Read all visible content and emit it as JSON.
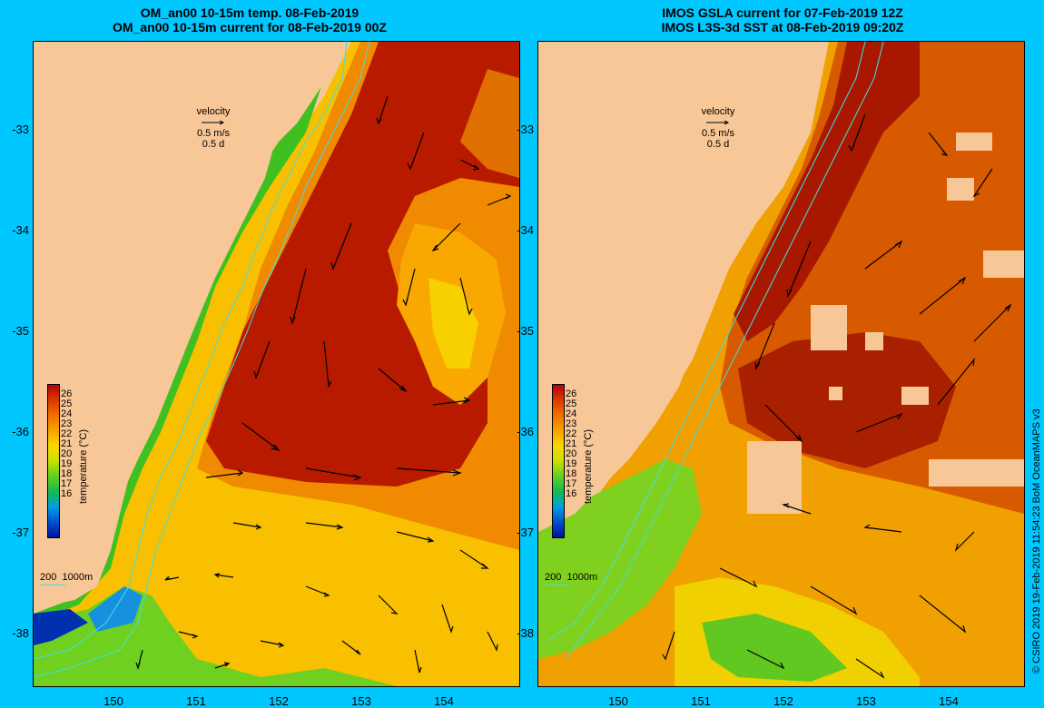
{
  "left_panel": {
    "title_line1": "OM_an00 10-15m temp. 08-Feb-2019",
    "title_line2": "OM_an00 10-15m current for 08-Feb-2019 00Z"
  },
  "right_panel": {
    "title_line1": "IMOS GSLA current for 07-Feb-2019 12Z",
    "title_line2": "IMOS L3S-3d SST at 08-Feb-2019 09:20Z"
  },
  "velocity_legend": {
    "title": "velocity",
    "speed": "0.5 m/s",
    "duration": "0.5 d"
  },
  "colorbar": {
    "title": "temperature (°C)",
    "ticks": [
      "26",
      "25",
      "24",
      "23",
      "22",
      "21",
      "20",
      "19",
      "18",
      "17",
      "16"
    ],
    "colors": [
      "#b8000f",
      "#d83b00",
      "#f07000",
      "#f8a000",
      "#f8d800",
      "#c8e000",
      "#60d020",
      "#18b850",
      "#00a0e0",
      "#0050d0",
      "#0010a0"
    ]
  },
  "depth_legend": {
    "label_200": "200",
    "label_1000": "1000m"
  },
  "lat_ticks": [
    "-33",
    "-34",
    "-35",
    "-36",
    "-37",
    "-38"
  ],
  "lon_ticks": [
    "150",
    "151",
    "152",
    "153",
    "154"
  ],
  "credit": "© CSIRO 2019   19-Feb-2019 11:54:23 BoM OceanMAPS v3",
  "colors": {
    "background": "#00c8ff",
    "land": "#f8c797",
    "isobath": "#40e0e0"
  }
}
